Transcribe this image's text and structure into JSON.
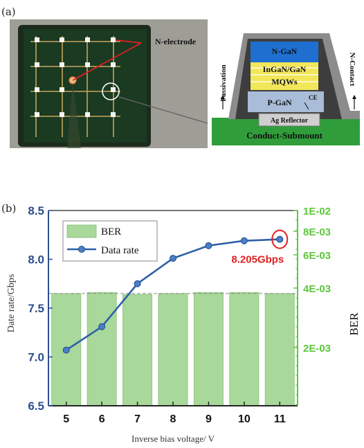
{
  "panel_a": {
    "label": "(a)",
    "n_electrode_label": "N-electrode",
    "layers": {
      "n_gan": "N-GaN",
      "ingan_gan": "InGaN/GaN",
      "mqws": "MQWs",
      "p_gan": "P-GaN",
      "ce": "CE",
      "ag_reflector": "Ag Reflector",
      "submount": "Conduct-Submount",
      "passivation": "Passivation",
      "n_contact": "N-Contact"
    },
    "colors": {
      "n_gan": "#1f6fd1",
      "mqw_yellow": "#f2e75a",
      "p_gan": "#a9bcd8",
      "submount": "#2f9d3a",
      "passivation": "#555555",
      "pointer": "#e02020"
    }
  },
  "panel_b": {
    "label": "(b)",
    "ylabel_left": "Date rate/Gbps",
    "ylabel_right": "BER",
    "xlabel": "Inverse bias voltage/ V",
    "annotation": "8.205Gbps"
  },
  "chart_data": {
    "type": "bar+line",
    "x": [
      5,
      6,
      7,
      8,
      9,
      10,
      11
    ],
    "xticks": [
      "5",
      "6",
      "7",
      "8",
      "9",
      "10",
      "11"
    ],
    "left_axis": {
      "ylim": [
        6.5,
        8.5
      ],
      "ticks": [
        "6.5",
        "7.0",
        "7.5",
        "8.0",
        "8.5"
      ],
      "color": "#2a4f8f"
    },
    "right_axis": {
      "ticks": [
        "2E-03",
        "4E-03",
        "6E-03",
        "8E-03",
        "1E-02"
      ],
      "color": "#5cc83a"
    },
    "series": [
      {
        "name": "BER",
        "kind": "bar",
        "axis": "left",
        "values": [
          7.65,
          7.66,
          7.64,
          7.65,
          7.66,
          7.66,
          7.65
        ],
        "color": "#a8d89a"
      },
      {
        "name": "Data rate",
        "kind": "line",
        "axis": "left",
        "values": [
          7.07,
          7.31,
          7.75,
          8.01,
          8.14,
          8.19,
          8.205
        ],
        "color": "#2e5fa8"
      }
    ],
    "legend": [
      "BER",
      "Data rate"
    ],
    "reference_line": 7.65,
    "highlight_point": {
      "x": 11,
      "label": "8.205Gbps",
      "color": "#e02020"
    }
  }
}
